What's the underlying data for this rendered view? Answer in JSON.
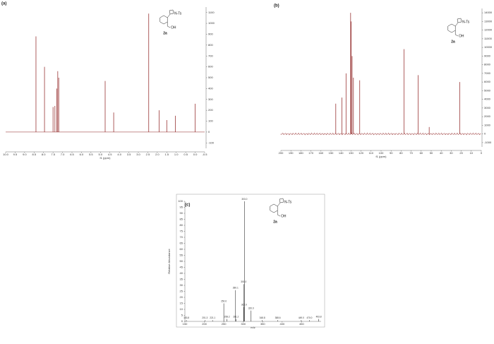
{
  "chart_data": [
    {
      "type": "stick",
      "panel_label": "(a)",
      "x_label": "f1 (ppm)",
      "color": "#8b1a1a",
      "x": [
        8.4,
        7.95,
        7.5,
        7.4,
        7.3,
        7.25,
        7.2,
        4.75,
        4.3,
        2.45,
        1.9,
        1.5,
        1.05,
        0.0
      ],
      "values": [
        880,
        600,
        230,
        240,
        400,
        560,
        500,
        470,
        180,
        1090,
        200,
        110,
        150,
        260
      ],
      "xlim": [
        10.0,
        -0.5
      ],
      "xticks": [
        {
          "value": 10.0,
          "label": "10.0"
        },
        {
          "value": 9.5,
          "label": "9.5"
        },
        {
          "value": 9.0,
          "label": "9.0"
        },
        {
          "value": 8.5,
          "label": "8.5"
        },
        {
          "value": 8.0,
          "label": "8.0"
        },
        {
          "value": 7.5,
          "label": "7.5"
        },
        {
          "value": 7.0,
          "label": "7.0"
        },
        {
          "value": 6.5,
          "label": "6.5"
        },
        {
          "value": 6.0,
          "label": "6.0"
        },
        {
          "value": 5.5,
          "label": "5.5"
        },
        {
          "value": 5.0,
          "label": "5.0"
        },
        {
          "value": 4.5,
          "label": "4.5"
        },
        {
          "value": 4.0,
          "label": "4.0"
        },
        {
          "value": 3.5,
          "label": "3.5"
        },
        {
          "value": 3.0,
          "label": "3.0"
        },
        {
          "value": 2.5,
          "label": "2.5"
        },
        {
          "value": 2.0,
          "label": "2.0"
        },
        {
          "value": 1.5,
          "label": "1.5"
        },
        {
          "value": 1.0,
          "label": "1.0"
        },
        {
          "value": 0.5,
          "label": "0.5"
        },
        {
          "value": 0.0,
          "label": "0.0"
        },
        {
          "value": -0.5,
          "label": "-0.5"
        }
      ],
      "ylim": [
        -150,
        1150
      ],
      "yticks": [
        -100,
        0,
        100,
        200,
        300,
        400,
        500,
        600,
        700,
        800,
        900,
        1000,
        1100
      ],
      "compound": "2a",
      "substituent": "N-Ts",
      "group": "OH"
    },
    {
      "type": "stick",
      "panel_label": "(b)",
      "x_label": "f1 (ppm)",
      "color": "#8b1a1a",
      "x": [
        145.2,
        139.1,
        135.0,
        130.4,
        129.8,
        128.9,
        127.6,
        121.3,
        77.0,
        63.0,
        52.0,
        21.6
      ],
      "values": [
        3500,
        4200,
        7000,
        14000,
        13000,
        9000,
        6500,
        6200,
        9800,
        6800,
        800,
        6000
      ],
      "xlim": [
        200,
        0
      ],
      "xticks": [
        200,
        190,
        180,
        170,
        160,
        150,
        140,
        130,
        120,
        110,
        100,
        90,
        80,
        70,
        60,
        50,
        40,
        30,
        20,
        10,
        0
      ],
      "ylim": [
        -1500,
        14500
      ],
      "yticks": [
        -1000,
        0,
        1000,
        2000,
        3000,
        4000,
        5000,
        6000,
        7000,
        8000,
        9000,
        10000,
        11000,
        12000,
        13000,
        14000
      ],
      "compound": "2a",
      "substituent": "N-Ts",
      "group": "OH"
    },
    {
      "type": "stick",
      "panel_label": "(c)",
      "x_label": "m/z",
      "y_label": "Relative Abundance",
      "color": "#333333",
      "x": [
        153.8,
        201.3,
        221.1,
        250.0,
        258.2,
        281.2,
        280.1,
        301.0,
        302.0,
        303.0,
        320.0,
        348.8,
        388.6,
        449.0,
        470.0,
        493.8
      ],
      "x_labels": [
        "153.8",
        "201.3",
        "221.1",
        "250.0",
        "258.2",
        "281.2",
        "280.1",
        "301.0",
        "302.0",
        "303.0",
        "320.0",
        "348.8",
        "388.6",
        "449.0",
        "470.0",
        "493.8"
      ],
      "values": [
        1,
        1,
        1,
        15,
        2,
        2,
        26,
        31,
        12,
        100,
        9,
        1,
        1,
        1,
        1,
        2
      ],
      "xlim": [
        150,
        500
      ],
      "xticks": [
        150,
        200,
        250,
        300,
        350,
        400,
        450
      ],
      "ylim": [
        0,
        100
      ],
      "yticks": [
        0,
        5,
        10,
        15,
        20,
        25,
        30,
        35,
        40,
        45,
        50,
        55,
        60,
        65,
        70,
        75,
        80,
        85,
        90,
        95,
        100
      ],
      "compound": "2a",
      "substituent": "N-Ts",
      "group": "OH"
    }
  ]
}
